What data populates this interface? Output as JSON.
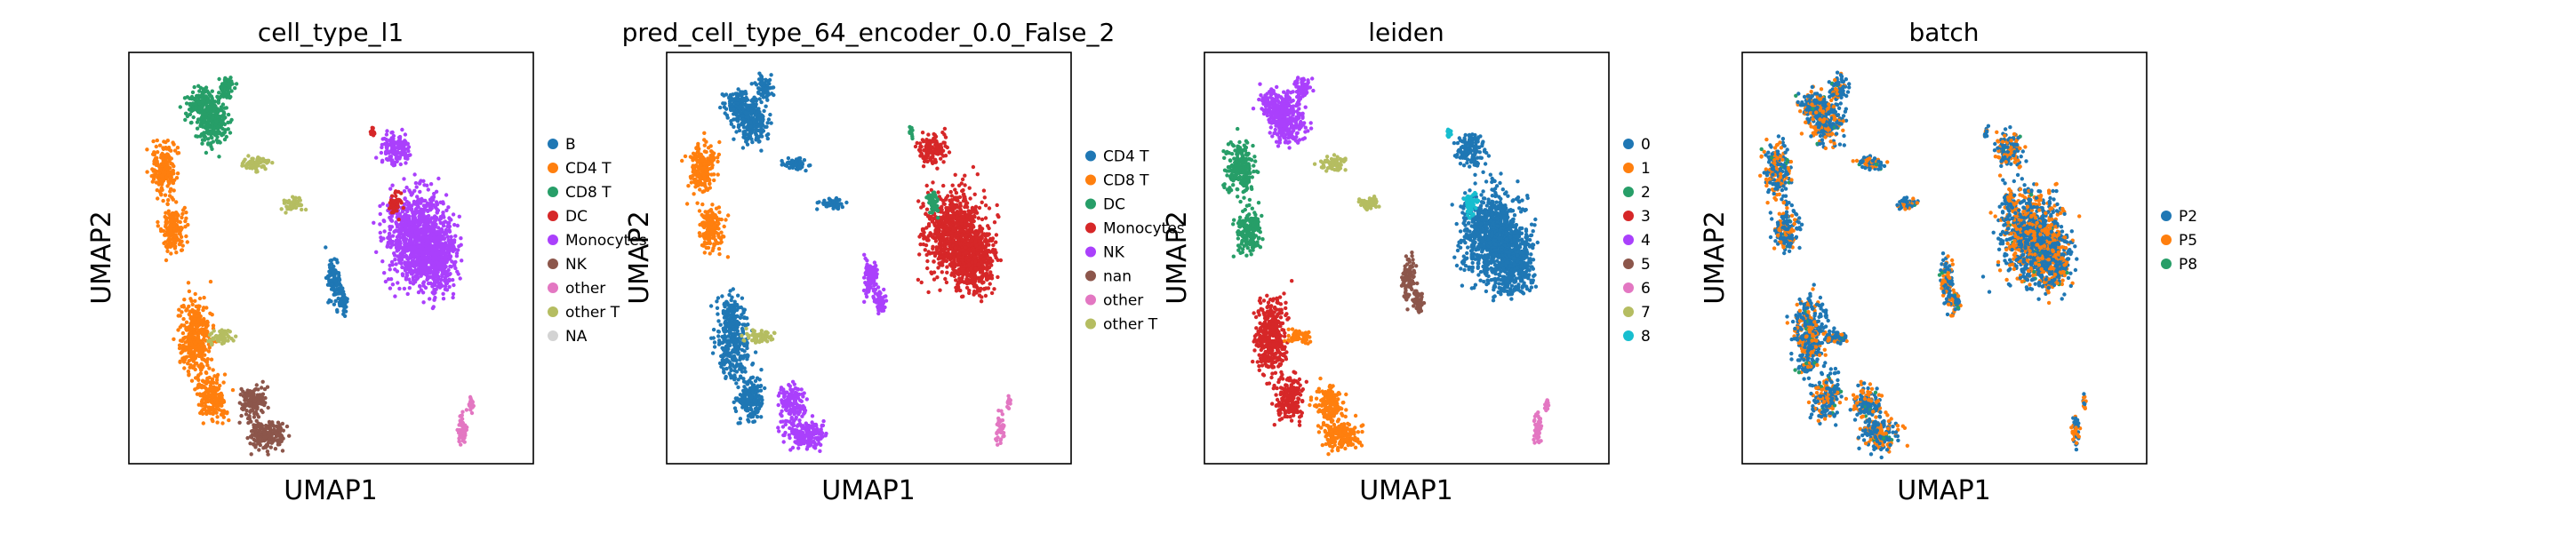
{
  "chart_data": [
    {
      "type": "scatter",
      "title": "cell_type_l1",
      "xlabel": "UMAP1",
      "ylabel": "UMAP2",
      "legend_position": "right",
      "grid": false,
      "legend": [
        {
          "name": "B",
          "color": "#1f77b4"
        },
        {
          "name": "CD4 T",
          "color": "#ff7f0e"
        },
        {
          "name": "CD8 T",
          "color": "#279e68"
        },
        {
          "name": "DC",
          "color": "#d62728"
        },
        {
          "name": "Monocytes",
          "color": "#aa40fc"
        },
        {
          "name": "NK",
          "color": "#8c564b"
        },
        {
          "name": "other",
          "color": "#e377c2"
        },
        {
          "name": "other T",
          "color": "#b5bd61"
        },
        {
          "name": "NA",
          "color": "#d3d3d3"
        }
      ]
    },
    {
      "type": "scatter",
      "title": "pred_cell_type_64_encoder_0.0_False_2",
      "xlabel": "UMAP1",
      "ylabel": "UMAP2",
      "legend_position": "right",
      "grid": false,
      "legend": [
        {
          "name": "CD4 T",
          "color": "#1f77b4"
        },
        {
          "name": "CD8 T",
          "color": "#ff7f0e"
        },
        {
          "name": "DC",
          "color": "#279e68"
        },
        {
          "name": "Monocytes",
          "color": "#d62728"
        },
        {
          "name": "NK",
          "color": "#aa40fc"
        },
        {
          "name": "nan",
          "color": "#8c564b"
        },
        {
          "name": "other",
          "color": "#e377c2"
        },
        {
          "name": "other T",
          "color": "#b5bd61"
        }
      ]
    },
    {
      "type": "scatter",
      "title": "leiden",
      "xlabel": "UMAP1",
      "ylabel": "UMAP2",
      "legend_position": "right",
      "grid": false,
      "legend": [
        {
          "name": "0",
          "color": "#1f77b4"
        },
        {
          "name": "1",
          "color": "#ff7f0e"
        },
        {
          "name": "2",
          "color": "#279e68"
        },
        {
          "name": "3",
          "color": "#d62728"
        },
        {
          "name": "4",
          "color": "#aa40fc"
        },
        {
          "name": "5",
          "color": "#8c564b"
        },
        {
          "name": "6",
          "color": "#e377c2"
        },
        {
          "name": "7",
          "color": "#b5bd61"
        },
        {
          "name": "8",
          "color": "#17becf"
        }
      ]
    },
    {
      "type": "scatter",
      "title": "batch",
      "xlabel": "UMAP1",
      "ylabel": "UMAP2",
      "legend_position": "right",
      "grid": false,
      "legend": [
        {
          "name": "P2",
          "color": "#1f77b4"
        },
        {
          "name": "P5",
          "color": "#ff7f0e"
        },
        {
          "name": "P8",
          "color": "#279e68"
        }
      ]
    }
  ]
}
